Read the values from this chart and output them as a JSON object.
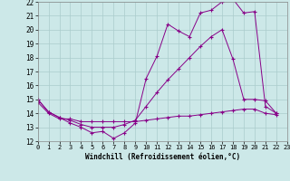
{
  "xlabel": "Windchill (Refroidissement éolien,°C)",
  "bg_color": "#cce8e8",
  "grid_color": "#aacccc",
  "line_color": "#880088",
  "xlim": [
    0,
    23
  ],
  "ylim": [
    12,
    22
  ],
  "yticks": [
    12,
    13,
    14,
    15,
    16,
    17,
    18,
    19,
    20,
    21,
    22
  ],
  "xticks": [
    0,
    1,
    2,
    3,
    4,
    5,
    6,
    7,
    8,
    9,
    10,
    11,
    12,
    13,
    14,
    15,
    16,
    17,
    18,
    19,
    20,
    21,
    22,
    23
  ],
  "series1_x": [
    0,
    1,
    2,
    3,
    4,
    5,
    6,
    7,
    8,
    9,
    10,
    11,
    12,
    13,
    14,
    15,
    16,
    17,
    18,
    19,
    20,
    21,
    22
  ],
  "series1_y": [
    15.0,
    14.1,
    13.7,
    13.3,
    13.0,
    12.6,
    12.7,
    12.2,
    12.6,
    13.3,
    16.5,
    18.1,
    20.4,
    19.9,
    19.5,
    21.2,
    21.4,
    22.0,
    22.2,
    21.2,
    21.3,
    14.5,
    14.0
  ],
  "series2_x": [
    0,
    1,
    2,
    3,
    4,
    5,
    6,
    7,
    8,
    9,
    10,
    11,
    12,
    13,
    14,
    15,
    16,
    17,
    18,
    19,
    20,
    21,
    22
  ],
  "series2_y": [
    15.0,
    14.1,
    13.7,
    13.5,
    13.2,
    13.0,
    13.0,
    13.0,
    13.2,
    13.5,
    14.5,
    15.5,
    16.4,
    17.2,
    18.0,
    18.8,
    19.5,
    20.0,
    17.9,
    15.0,
    15.0,
    14.9,
    14.0
  ],
  "series3_x": [
    0,
    1,
    2,
    3,
    4,
    5,
    6,
    7,
    8,
    9,
    10,
    11,
    12,
    13,
    14,
    15,
    16,
    17,
    18,
    19,
    20,
    21,
    22
  ],
  "series3_y": [
    14.8,
    14.0,
    13.6,
    13.6,
    13.4,
    13.4,
    13.4,
    13.4,
    13.4,
    13.4,
    13.5,
    13.6,
    13.7,
    13.8,
    13.8,
    13.9,
    14.0,
    14.1,
    14.2,
    14.3,
    14.3,
    14.0,
    13.9
  ]
}
